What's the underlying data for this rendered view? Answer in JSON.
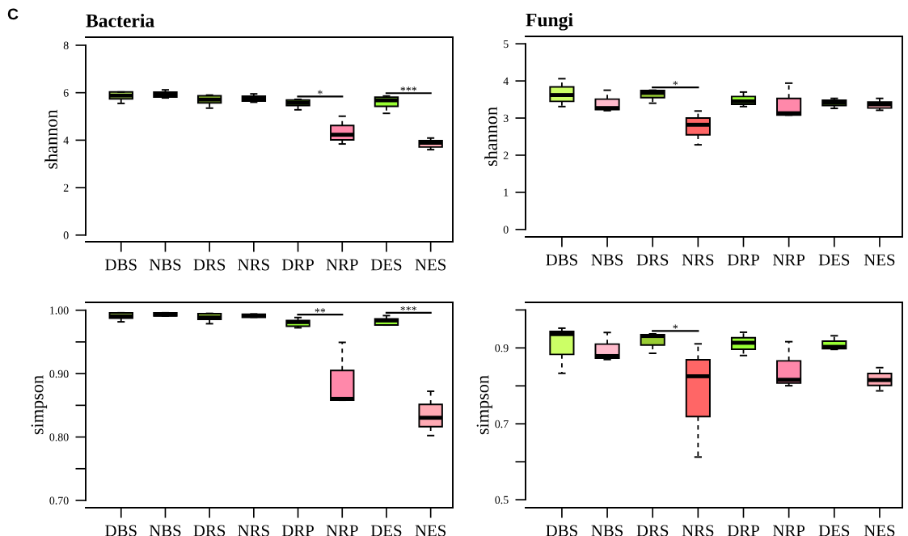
{
  "chart_data": [
    {
      "type": "box",
      "title": "Bacteria",
      "ylabel": "shannon",
      "categories": [
        "DBS",
        "NBS",
        "DRS",
        "NRS",
        "DRP",
        "NRP",
        "DES",
        "NES"
      ],
      "colors": [
        "#ccff66",
        "#ffbbcc",
        "#99cc33",
        "#ff6666",
        "#99ff33",
        "#ff88aa",
        "#99ff33",
        "#ffaab4"
      ],
      "boxes": [
        {
          "low": 5.55,
          "q1": 5.74,
          "median": 5.88,
          "q3": 6.03,
          "high": 6.03
        },
        {
          "low": 5.78,
          "q1": 5.82,
          "median": 5.91,
          "q3": 6.02,
          "high": 6.12
        },
        {
          "low": 5.35,
          "q1": 5.57,
          "median": 5.71,
          "q3": 5.87,
          "high": 5.9
        },
        {
          "low": 5.6,
          "q1": 5.65,
          "median": 5.74,
          "q3": 5.85,
          "high": 5.95
        },
        {
          "low": 5.28,
          "q1": 5.46,
          "median": 5.57,
          "q3": 5.69,
          "high": 5.72
        },
        {
          "low": 3.84,
          "q1": 4.01,
          "median": 4.23,
          "q3": 4.62,
          "high": 5.01
        },
        {
          "low": 5.13,
          "q1": 5.43,
          "median": 5.68,
          "q3": 5.81,
          "high": 5.86
        },
        {
          "low": 3.6,
          "q1": 3.71,
          "median": 3.89,
          "q3": 3.98,
          "high": 4.09
        }
      ],
      "ylim": [
        -0.28,
        8.34
      ],
      "yticks": [
        0,
        2,
        4,
        6,
        8
      ],
      "annotations": [
        "C",
        "*",
        "***"
      ]
    },
    {
      "type": "box",
      "title": "Fungi",
      "ylabel": "shannon",
      "categories": [
        "DBS",
        "NBS",
        "DRS",
        "NRS",
        "DRP",
        "NRP",
        "DES",
        "NES"
      ],
      "colors": [
        "#ccff66",
        "#ffbbcc",
        "#99cc33",
        "#ff6666",
        "#99ff33",
        "#ff88aa",
        "#99ff33",
        "#ffaab4"
      ],
      "boxes": [
        {
          "low": 3.31,
          "q1": 3.45,
          "median": 3.62,
          "q3": 3.84,
          "high": 4.06
        },
        {
          "low": 3.2,
          "q1": 3.23,
          "median": 3.27,
          "q3": 3.51,
          "high": 3.75
        },
        {
          "low": 3.4,
          "q1": 3.55,
          "median": 3.68,
          "q3": 3.74,
          "high": 3.75
        },
        {
          "low": 2.28,
          "q1": 2.55,
          "median": 2.82,
          "q3": 3.0,
          "high": 3.19
        },
        {
          "low": 3.31,
          "q1": 3.37,
          "median": 3.45,
          "q3": 3.58,
          "high": 3.7
        },
        {
          "low": 3.08,
          "q1": 3.08,
          "median": 3.13,
          "q3": 3.53,
          "high": 3.94
        },
        {
          "low": 3.26,
          "q1": 3.34,
          "median": 3.41,
          "q3": 3.48,
          "high": 3.53
        },
        {
          "low": 3.21,
          "q1": 3.27,
          "median": 3.37,
          "q3": 3.43,
          "high": 3.53
        }
      ],
      "ylim": [
        -0.2,
        5.2
      ],
      "yticks": [
        0,
        1,
        2,
        3,
        4,
        5
      ],
      "annotations": [
        "*"
      ]
    },
    {
      "type": "box",
      "ylabel": "simpson",
      "categories": [
        "DBS",
        "NBS",
        "DRS",
        "NRS",
        "DRP",
        "NRP",
        "DES",
        "NES"
      ],
      "colors": [
        "#ccff66",
        "#ffbbcc",
        "#99cc33",
        "#ff6666",
        "#99ff33",
        "#ff88aa",
        "#99ff33",
        "#ffaab4"
      ],
      "boxes": [
        {
          "low": 0.9817,
          "q1": 0.9876,
          "median": 0.9906,
          "q3": 0.9957,
          "high": 0.996
        },
        {
          "low": 0.991,
          "q1": 0.991,
          "median": 0.9932,
          "q3": 0.9957,
          "high": 0.996
        },
        {
          "low": 0.9787,
          "q1": 0.9855,
          "median": 0.9885,
          "q3": 0.9945,
          "high": 0.995
        },
        {
          "low": 0.989,
          "q1": 0.9889,
          "median": 0.9915,
          "q3": 0.9936,
          "high": 0.994
        },
        {
          "low": 0.9723,
          "q1": 0.9749,
          "median": 0.9813,
          "q3": 0.9838,
          "high": 0.9885
        },
        {
          "low": 0.858,
          "q1": 0.8581,
          "median": 0.8602,
          "q3": 0.905,
          "high": 0.9493
        },
        {
          "low": 0.9766,
          "q1": 0.9766,
          "median": 0.9838,
          "q3": 0.9864,
          "high": 0.9915
        },
        {
          "low": 0.8023,
          "q1": 0.8164,
          "median": 0.8304,
          "q3": 0.8513,
          "high": 0.8722
        }
      ],
      "ylim": [
        0.6885,
        1.0124
      ],
      "yticks": [
        "0.70",
        {
          "value": 0.75,
          "label": null
        },
        {
          "value": 0.8,
          "label": "0.80"
        },
        {
          "value": 0.85,
          "label": null
        },
        {
          "value": 0.9,
          "label": "0.90"
        },
        {
          "value": 0.95,
          "label": null
        },
        {
          "value": 1.0,
          "label": "1.00"
        }
      ],
      "annotations": [
        "**",
        "***"
      ]
    },
    {
      "type": "box",
      "ylabel": "simpson",
      "categories": [
        "DBS",
        "NBS",
        "DRS",
        "NRS",
        "DRP",
        "NRP",
        "DES",
        "NES"
      ],
      "colors": [
        "#ccff66",
        "#ffbbcc",
        "#99cc33",
        "#ff6666",
        "#99ff33",
        "#ff88aa",
        "#99ff33",
        "#ffaab4"
      ],
      "boxes": [
        {
          "low": 0.8331,
          "q1": 0.8829,
          "median": 0.9363,
          "q3": 0.9434,
          "high": 0.952
        },
        {
          "low": 0.8694,
          "q1": 0.873,
          "median": 0.8786,
          "q3": 0.91,
          "high": 0.9406
        },
        {
          "low": 0.8858,
          "q1": 0.9078,
          "median": 0.9313,
          "q3": 0.9349,
          "high": 0.937
        },
        {
          "low": 0.6125,
          "q1": 0.7192,
          "median": 0.8253,
          "q3": 0.8687,
          "high": 0.9107
        },
        {
          "low": 0.88,
          "q1": 0.8964,
          "median": 0.9135,
          "q3": 0.927,
          "high": 0.9413
        },
        {
          "low": 0.8004,
          "q1": 0.8075,
          "median": 0.816,
          "q3": 0.8658,
          "high": 0.9164
        },
        {
          "low": 0.896,
          "q1": 0.8979,
          "median": 0.9028,
          "q3": 0.9178,
          "high": 0.932
        },
        {
          "low": 0.7868,
          "q1": 0.8011,
          "median": 0.8153,
          "q3": 0.8324,
          "high": 0.848
        }
      ],
      "ylim": [
        0.479,
        1.02
      ],
      "yticks": [
        0.5,
        {
          "value": 0.6,
          "label": null
        },
        0.7,
        {
          "value": 0.8,
          "label": null
        },
        0.9,
        {
          "value": 1.0,
          "label": null
        }
      ],
      "annotations": [
        "*"
      ]
    }
  ]
}
